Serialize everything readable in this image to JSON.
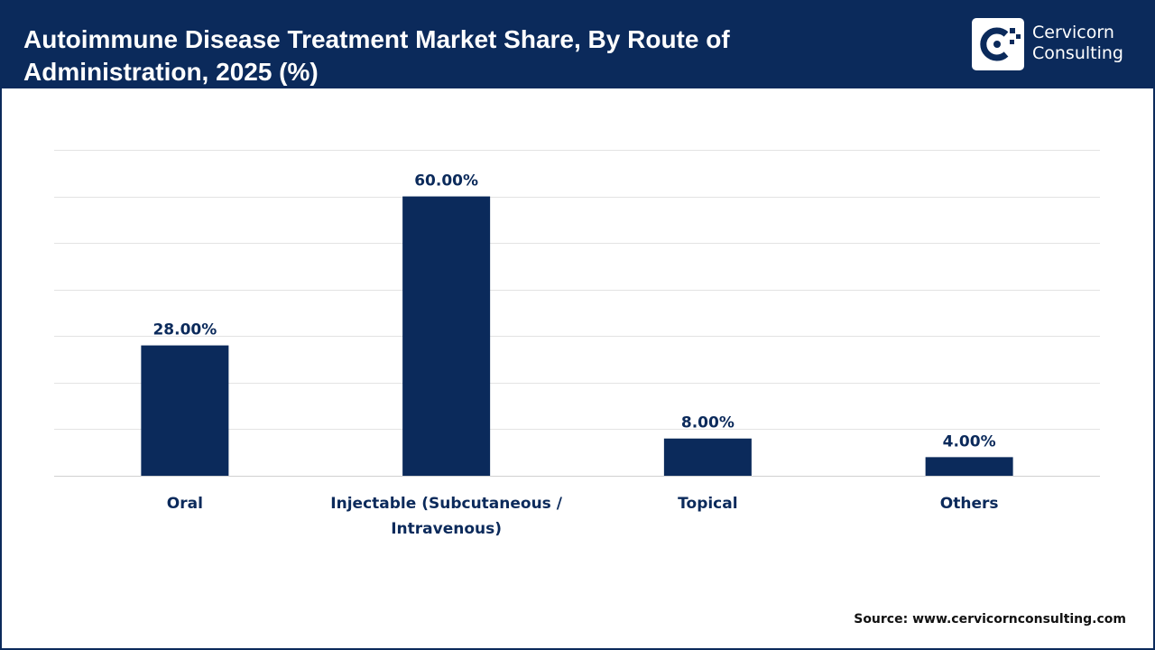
{
  "header": {
    "title": "Autoimmune Disease Treatment Market Share, By Route of Administration, 2025 (%)",
    "background": "#0b2a5b"
  },
  "logo": {
    "line1": "Cervicorn",
    "line2": "Consulting"
  },
  "source": "Source: www.cervicornconsulting.com",
  "colors": {
    "bar": "#0b2a5b",
    "text": "#0b2a5b",
    "grid": "#e3e3e3"
  },
  "chart_data": {
    "type": "bar",
    "title": "Autoimmune Disease Treatment Market Share, By Route of Administration, 2025 (%)",
    "categories": [
      [
        "Oral"
      ],
      [
        "Injectable (Subcutaneous /",
        "Intravenous)"
      ],
      [
        "Topical"
      ],
      [
        "Others"
      ]
    ],
    "values": [
      28,
      60,
      8,
      4
    ],
    "data_labels": [
      "28.00%",
      "60.00%",
      "8.00%",
      "4.00%"
    ],
    "xlabel": "",
    "ylabel": "",
    "ylim": [
      0,
      70
    ],
    "grid": true,
    "y_axis_visible": false
  }
}
